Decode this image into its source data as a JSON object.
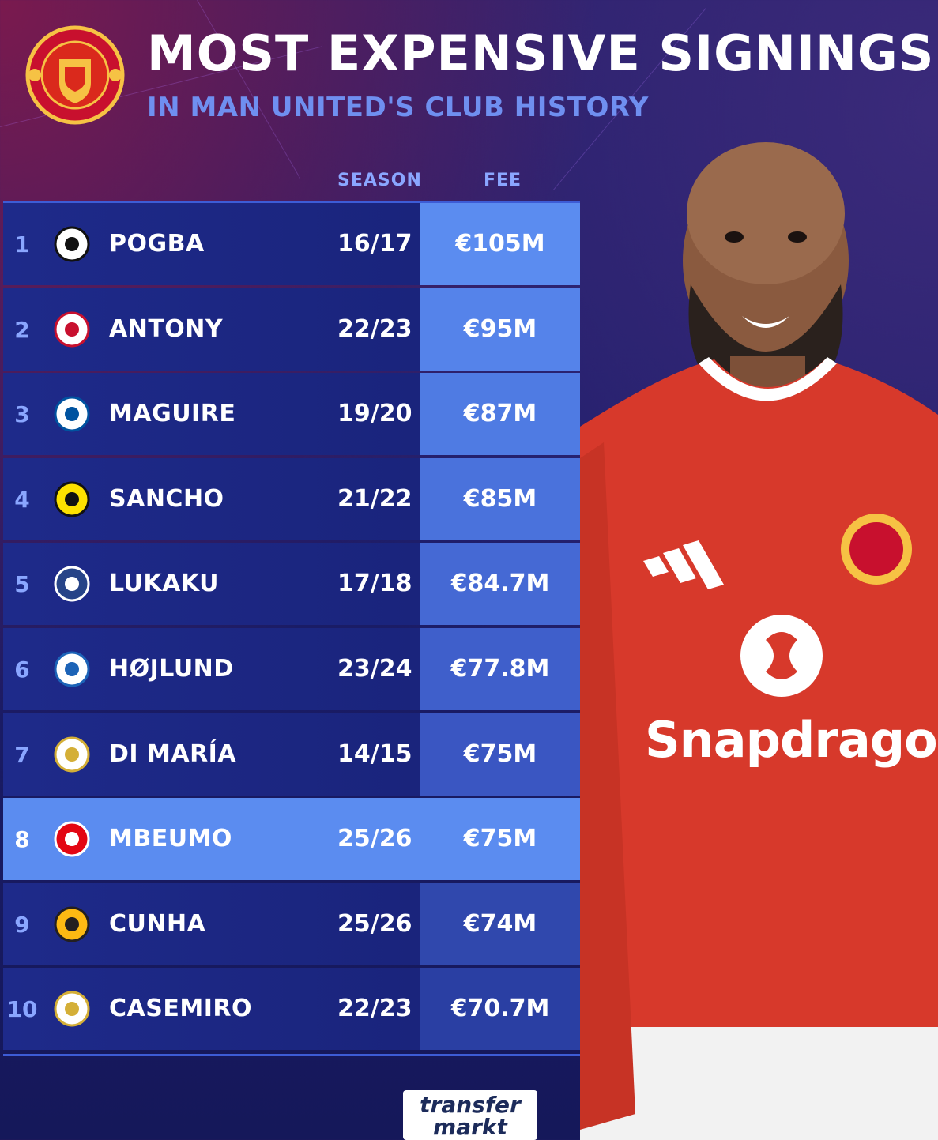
{
  "header": {
    "title": "MOST EXPENSIVE SIGNINGS",
    "subtitle": "IN MAN UNITED'S CLUB HISTORY",
    "crest_icon": "manchester-united-crest"
  },
  "table": {
    "columns": {
      "season": "SEASON",
      "fee": "FEE"
    },
    "rows": [
      {
        "rank": "1",
        "player": "POGBA",
        "season": "16/17",
        "fee": "€105M",
        "club_icon": "juventus-crest",
        "fee_color": "#5b8cf0"
      },
      {
        "rank": "2",
        "player": "ANTONY",
        "season": "22/23",
        "fee": "€95M",
        "club_icon": "ajax-crest",
        "fee_color": "#5583ea"
      },
      {
        "rank": "3",
        "player": "MAGUIRE",
        "season": "19/20",
        "fee": "€87M",
        "club_icon": "leicester-crest",
        "fee_color": "#4f7be3"
      },
      {
        "rank": "4",
        "player": "SANCHO",
        "season": "21/22",
        "fee": "€85M",
        "club_icon": "dortmund-crest",
        "fee_color": "#4a72dc"
      },
      {
        "rank": "5",
        "player": "LUKAKU",
        "season": "17/18",
        "fee": "€84.7M",
        "club_icon": "everton-crest",
        "fee_color": "#4569d4"
      },
      {
        "rank": "6",
        "player": "HØJLUND",
        "season": "23/24",
        "fee": "€77.8M",
        "club_icon": "atalanta-crest",
        "fee_color": "#3f5fcb"
      },
      {
        "rank": "7",
        "player": "DI MARÍA",
        "season": "14/15",
        "fee": "€75M",
        "club_icon": "real-madrid-crest",
        "fee_color": "#3a56c2"
      },
      {
        "rank": "8",
        "player": "MBEUMO",
        "season": "25/26",
        "fee": "€75M",
        "club_icon": "brentford-crest",
        "fee_color": "#5b8cf0",
        "highlight": true
      },
      {
        "rank": "9",
        "player": "CUNHA",
        "season": "25/26",
        "fee": "€74M",
        "club_icon": "wolves-crest",
        "fee_color": "#3048ad"
      },
      {
        "rank": "10",
        "player": "CASEMIRO",
        "season": "22/23",
        "fee": "€70.7M",
        "club_icon": "real-madrid-crest",
        "fee_color": "#2a3fa3"
      }
    ]
  },
  "player_art": {
    "sponsor": "Snapdragon",
    "shirt_color": "#d7392b"
  },
  "footer": {
    "logo_line1": "transfer",
    "logo_line2": "markt"
  }
}
